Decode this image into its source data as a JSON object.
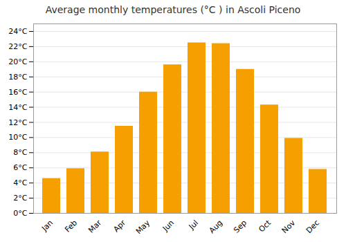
{
  "chart_data": {
    "type": "bar",
    "title": "Average monthly temperatures (°C ) in Ascoli Piceno",
    "categories": [
      "Jan",
      "Feb",
      "Mar",
      "Apr",
      "May",
      "Jun",
      "Jul",
      "Aug",
      "Sep",
      "Oct",
      "Nov",
      "Dec"
    ],
    "values": [
      4.6,
      5.9,
      8.1,
      11.5,
      16.0,
      19.6,
      22.5,
      22.4,
      19.0,
      14.3,
      9.9,
      5.8
    ],
    "color": "#F5A000",
    "ylim": [
      0,
      25
    ],
    "yticks": [
      {
        "value": 0,
        "label": "0°C"
      },
      {
        "value": 2,
        "label": "2°C"
      },
      {
        "value": 4,
        "label": "4°C"
      },
      {
        "value": 6,
        "label": "6°C"
      },
      {
        "value": 8,
        "label": "8°C"
      },
      {
        "value": 10,
        "label": "10°C"
      },
      {
        "value": 12,
        "label": "12°C"
      },
      {
        "value": 14,
        "label": "14°C"
      },
      {
        "value": 16,
        "label": "16°C"
      },
      {
        "value": 18,
        "label": "18°C"
      },
      {
        "value": 20,
        "label": "20°C"
      },
      {
        "value": 22,
        "label": "22°C"
      },
      {
        "value": 24,
        "label": "24°C"
      }
    ],
    "grid": true
  }
}
